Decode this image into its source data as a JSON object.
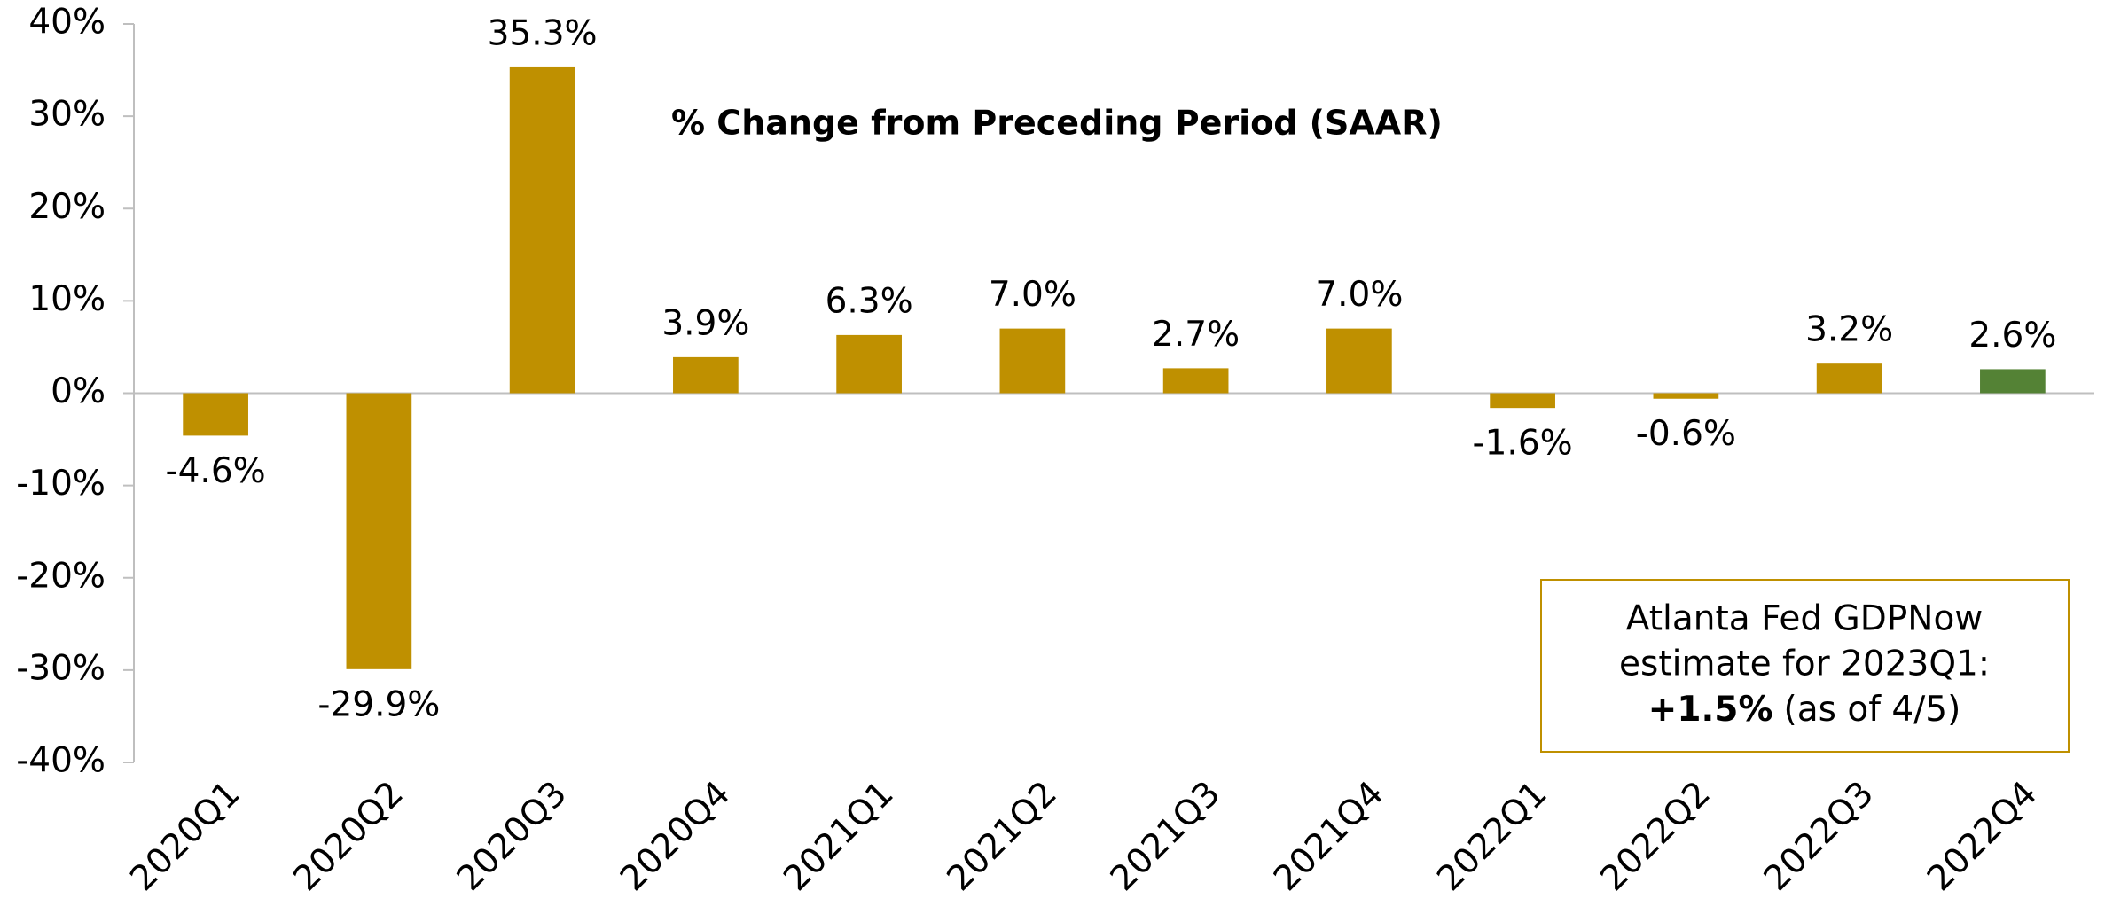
{
  "chart_data": {
    "type": "bar",
    "title": "%  Change from Preceding Period (SAAR)",
    "categories": [
      "2020Q1",
      "2020Q2",
      "2020Q3",
      "2020Q4",
      "2021Q1",
      "2021Q2",
      "2021Q3",
      "2021Q4",
      "2022Q1",
      "2022Q2",
      "2022Q3",
      "2022Q4"
    ],
    "values": [
      -4.6,
      -29.9,
      35.3,
      3.9,
      6.3,
      7.0,
      2.7,
      7.0,
      -1.6,
      -0.6,
      3.2,
      2.6
    ],
    "value_labels": [
      "-4.6%",
      "-29.9%",
      "35.3%",
      "3.9%",
      "6.3%",
      "7.0%",
      "2.7%",
      "7.0%",
      "-1.6%",
      "-0.6%",
      "3.2%",
      "2.6%"
    ],
    "colors": [
      "#bf9000",
      "#bf9000",
      "#bf9000",
      "#bf9000",
      "#bf9000",
      "#bf9000",
      "#bf9000",
      "#bf9000",
      "#bf9000",
      "#bf9000",
      "#bf9000",
      "#548235"
    ],
    "ylim": [
      -40,
      40
    ],
    "yticks": [
      {
        "value": -40,
        "label": "-40%"
      },
      {
        "value": -30,
        "label": "-30%"
      },
      {
        "value": -20,
        "label": "-20%"
      },
      {
        "value": -10,
        "label": "-10%"
      },
      {
        "value": 0,
        "label": "0%"
      },
      {
        "value": 10,
        "label": "10%"
      },
      {
        "value": 20,
        "label": "20%"
      },
      {
        "value": 30,
        "label": "30%"
      },
      {
        "value": 40,
        "label": "40%"
      }
    ],
    "grid": false,
    "annotation": {
      "lines": [
        "Atlanta Fed GDPNow",
        "estimate for 2023Q1:"
      ],
      "highlight": "+1.5%",
      "note": "(as of 4/5)",
      "border_color": "#bf9000"
    }
  }
}
